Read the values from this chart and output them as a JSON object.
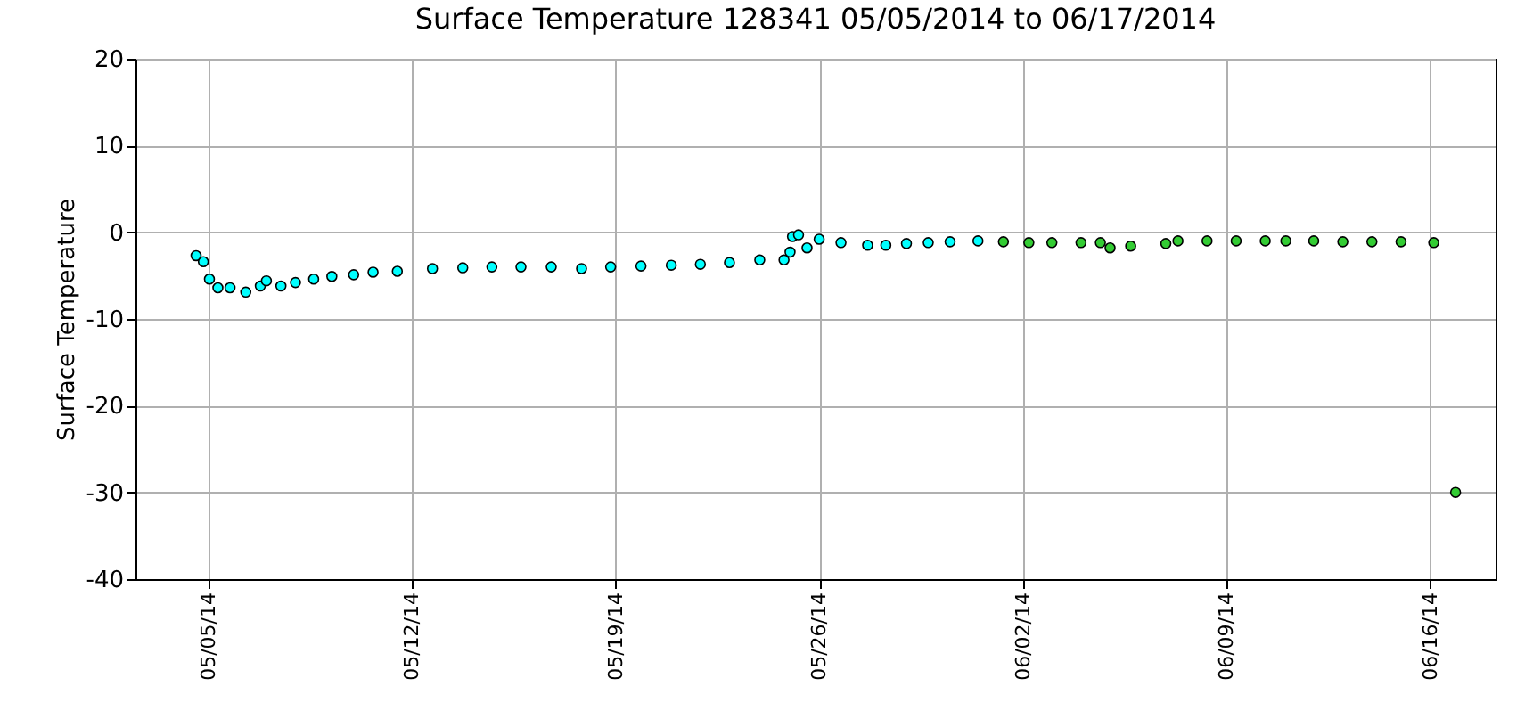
{
  "chart_data": {
    "type": "scatter",
    "title": "Surface Temperature 128341  05/05/2014 to 06/17/2014",
    "ylabel": "Surface Temperature",
    "xlim": [
      "2014-05-02T12:00",
      "2014-06-18T06:00"
    ],
    "xticks": [
      {
        "value": "2014-05-05",
        "label": "05/05/14"
      },
      {
        "value": "2014-05-12",
        "label": "05/12/14"
      },
      {
        "value": "2014-05-19",
        "label": "05/19/14"
      },
      {
        "value": "2014-05-26",
        "label": "05/26/14"
      },
      {
        "value": "2014-06-02",
        "label": "06/02/14"
      },
      {
        "value": "2014-06-09",
        "label": "06/09/14"
      },
      {
        "value": "2014-06-16",
        "label": "06/16/14"
      }
    ],
    "ylim": [
      -40,
      20
    ],
    "yticks": [
      -40,
      -30,
      -20,
      -10,
      0,
      10,
      20
    ],
    "grid": true,
    "legend": false,
    "marker": "circle",
    "series": [
      {
        "color": "#00ffff",
        "x": [
          "2014-05-04T14:00",
          "2014-05-04T20:00",
          "2014-05-05T01:00",
          "2014-05-05T08:00",
          "2014-05-05T18:00",
          "2014-05-06T07:00",
          "2014-05-06T19:00",
          "2014-05-07T00:00",
          "2014-05-07T12:00",
          "2014-05-08T00:00",
          "2014-05-08T15:00",
          "2014-05-09T06:00",
          "2014-05-10T00:00",
          "2014-05-10T16:00",
          "2014-05-11T12:00",
          "2014-05-12T17:00",
          "2014-05-13T18:00",
          "2014-05-14T18:00",
          "2014-05-15T18:00",
          "2014-05-16T19:00",
          "2014-05-17T20:00",
          "2014-05-18T20:00",
          "2014-05-19T21:00",
          "2014-05-20T22:00",
          "2014-05-21T22:00",
          "2014-05-22T22:00",
          "2014-05-23T23:00",
          "2014-05-24T19:00",
          "2014-05-25T00:00",
          "2014-05-25T02:00",
          "2014-05-25T07:00",
          "2014-05-25T14:00",
          "2014-05-26T00:00",
          "2014-05-26T18:00",
          "2014-05-27T16:00",
          "2014-05-28T07:00",
          "2014-05-29T00:00",
          "2014-05-29T18:00",
          "2014-05-30T12:00",
          "2014-05-31T11:00"
        ],
        "values": [
          -2.7,
          -3.4,
          -5.4,
          -6.4,
          -6.4,
          -6.9,
          -6.2,
          -5.6,
          -6.2,
          -5.8,
          -5.4,
          -5.1,
          -4.9,
          -4.6,
          -4.5,
          -4.2,
          -4.1,
          -4.0,
          -4.0,
          -4.0,
          -4.2,
          -4.0,
          -3.9,
          -3.8,
          -3.7,
          -3.5,
          -3.2,
          -3.2,
          -2.3,
          -0.5,
          -0.3,
          -1.8,
          -0.8,
          -1.2,
          -1.5,
          -1.5,
          -1.3,
          -1.2,
          -1.1,
          -1.0
        ]
      },
      {
        "color": "#33cc33",
        "x": [
          "2014-06-01T08:00",
          "2014-06-02T05:00",
          "2014-06-03T00:00",
          "2014-06-04T00:00",
          "2014-06-04T16:00",
          "2014-06-05T00:00",
          "2014-06-05T17:00",
          "2014-06-06T22:00",
          "2014-06-07T08:00",
          "2014-06-08T08:00",
          "2014-06-09T08:00",
          "2014-06-10T08:00",
          "2014-06-11T01:00",
          "2014-06-12T00:00",
          "2014-06-13T00:00",
          "2014-06-14T00:00",
          "2014-06-15T00:00",
          "2014-06-16T03:00",
          "2014-06-16T21:00"
        ],
        "values": [
          -1.1,
          -1.2,
          -1.2,
          -1.2,
          -1.2,
          -1.8,
          -1.6,
          -1.3,
          -1.0,
          -1.0,
          -1.0,
          -1.0,
          -1.0,
          -1.0,
          -1.1,
          -1.1,
          -1.1,
          -1.2,
          -30.0
        ]
      }
    ]
  }
}
